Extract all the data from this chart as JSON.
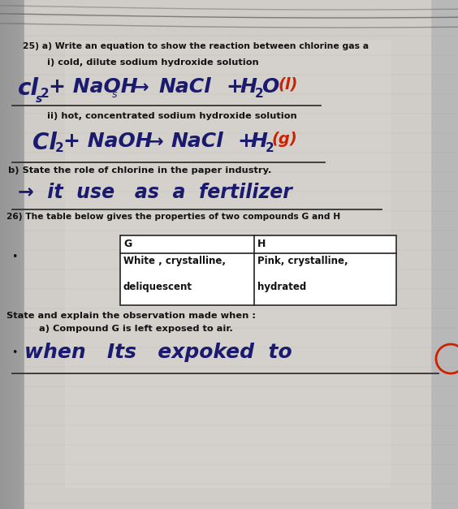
{
  "page_bg": "#c8c8c8",
  "page_bg2": "#d4d0cc",
  "page_bg3": "#b8b8b8",
  "title_text": "25) a) Write an equation to show the reaction between chlorine gas a",
  "sub_i_label": "i) cold, dilute sodium hydroxide solution",
  "sub_ii_label": "ii) hot, concentrated sodium hydroxide solution",
  "b_label": "b) State the role of chlorine in the paper industry.",
  "q26_label": "26) The table below gives the properties of two compounds G and H",
  "table_headers": [
    "G",
    "H"
  ],
  "table_row1": [
    "White , crystalline,",
    "Pink, crystalline,"
  ],
  "table_row2": [
    "deliquescent",
    "hydrated"
  ],
  "state_label": "State and explain the observation made when :",
  "state_sub": "a) Compound G is left exposed to air.",
  "handwriting_color": "#1a1a6e",
  "red_color": "#cc2200",
  "line_color": "#333333",
  "printed_color": "#111111",
  "bullet": "•",
  "title_fontsize": 7.8,
  "label_fontsize": 8.2,
  "hw_fontsize": 18,
  "hw_sub_fontsize": 11
}
